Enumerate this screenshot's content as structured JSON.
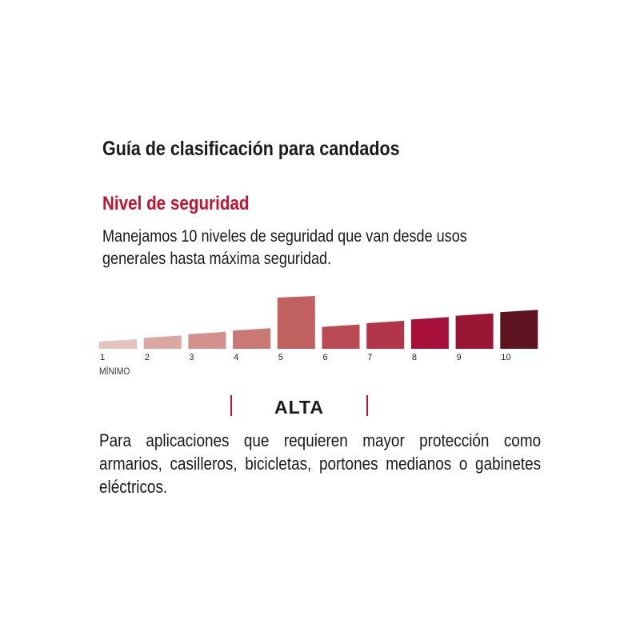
{
  "title": "Guía de clasificación para candados",
  "subtitle": "Nivel de seguridad",
  "intro": [
    "Manejamos 10 niveles de seguridad que van desde usos",
    "generales hasta máxima seguridad."
  ],
  "scale": {
    "levels": [
      "1",
      "2",
      "3",
      "4",
      "5",
      "6",
      "7",
      "8",
      "9",
      "10"
    ],
    "colors": [
      "#e3c4bc",
      "#dba7a3",
      "#d4908d",
      "#c97876",
      "#c0605f",
      "#b94a54",
      "#b2364a",
      "#a8103c",
      "#9a1632",
      "#5e1420"
    ],
    "selected_level": 5,
    "min_label": "MÍNIMO"
  },
  "selected_category": "ALTA",
  "accent_color": "#c4122f",
  "description": "Para aplicaciones que requieren mayor protección como armarios, casilleros, bicicletas, portones medianos o gabinetes eléctricos."
}
